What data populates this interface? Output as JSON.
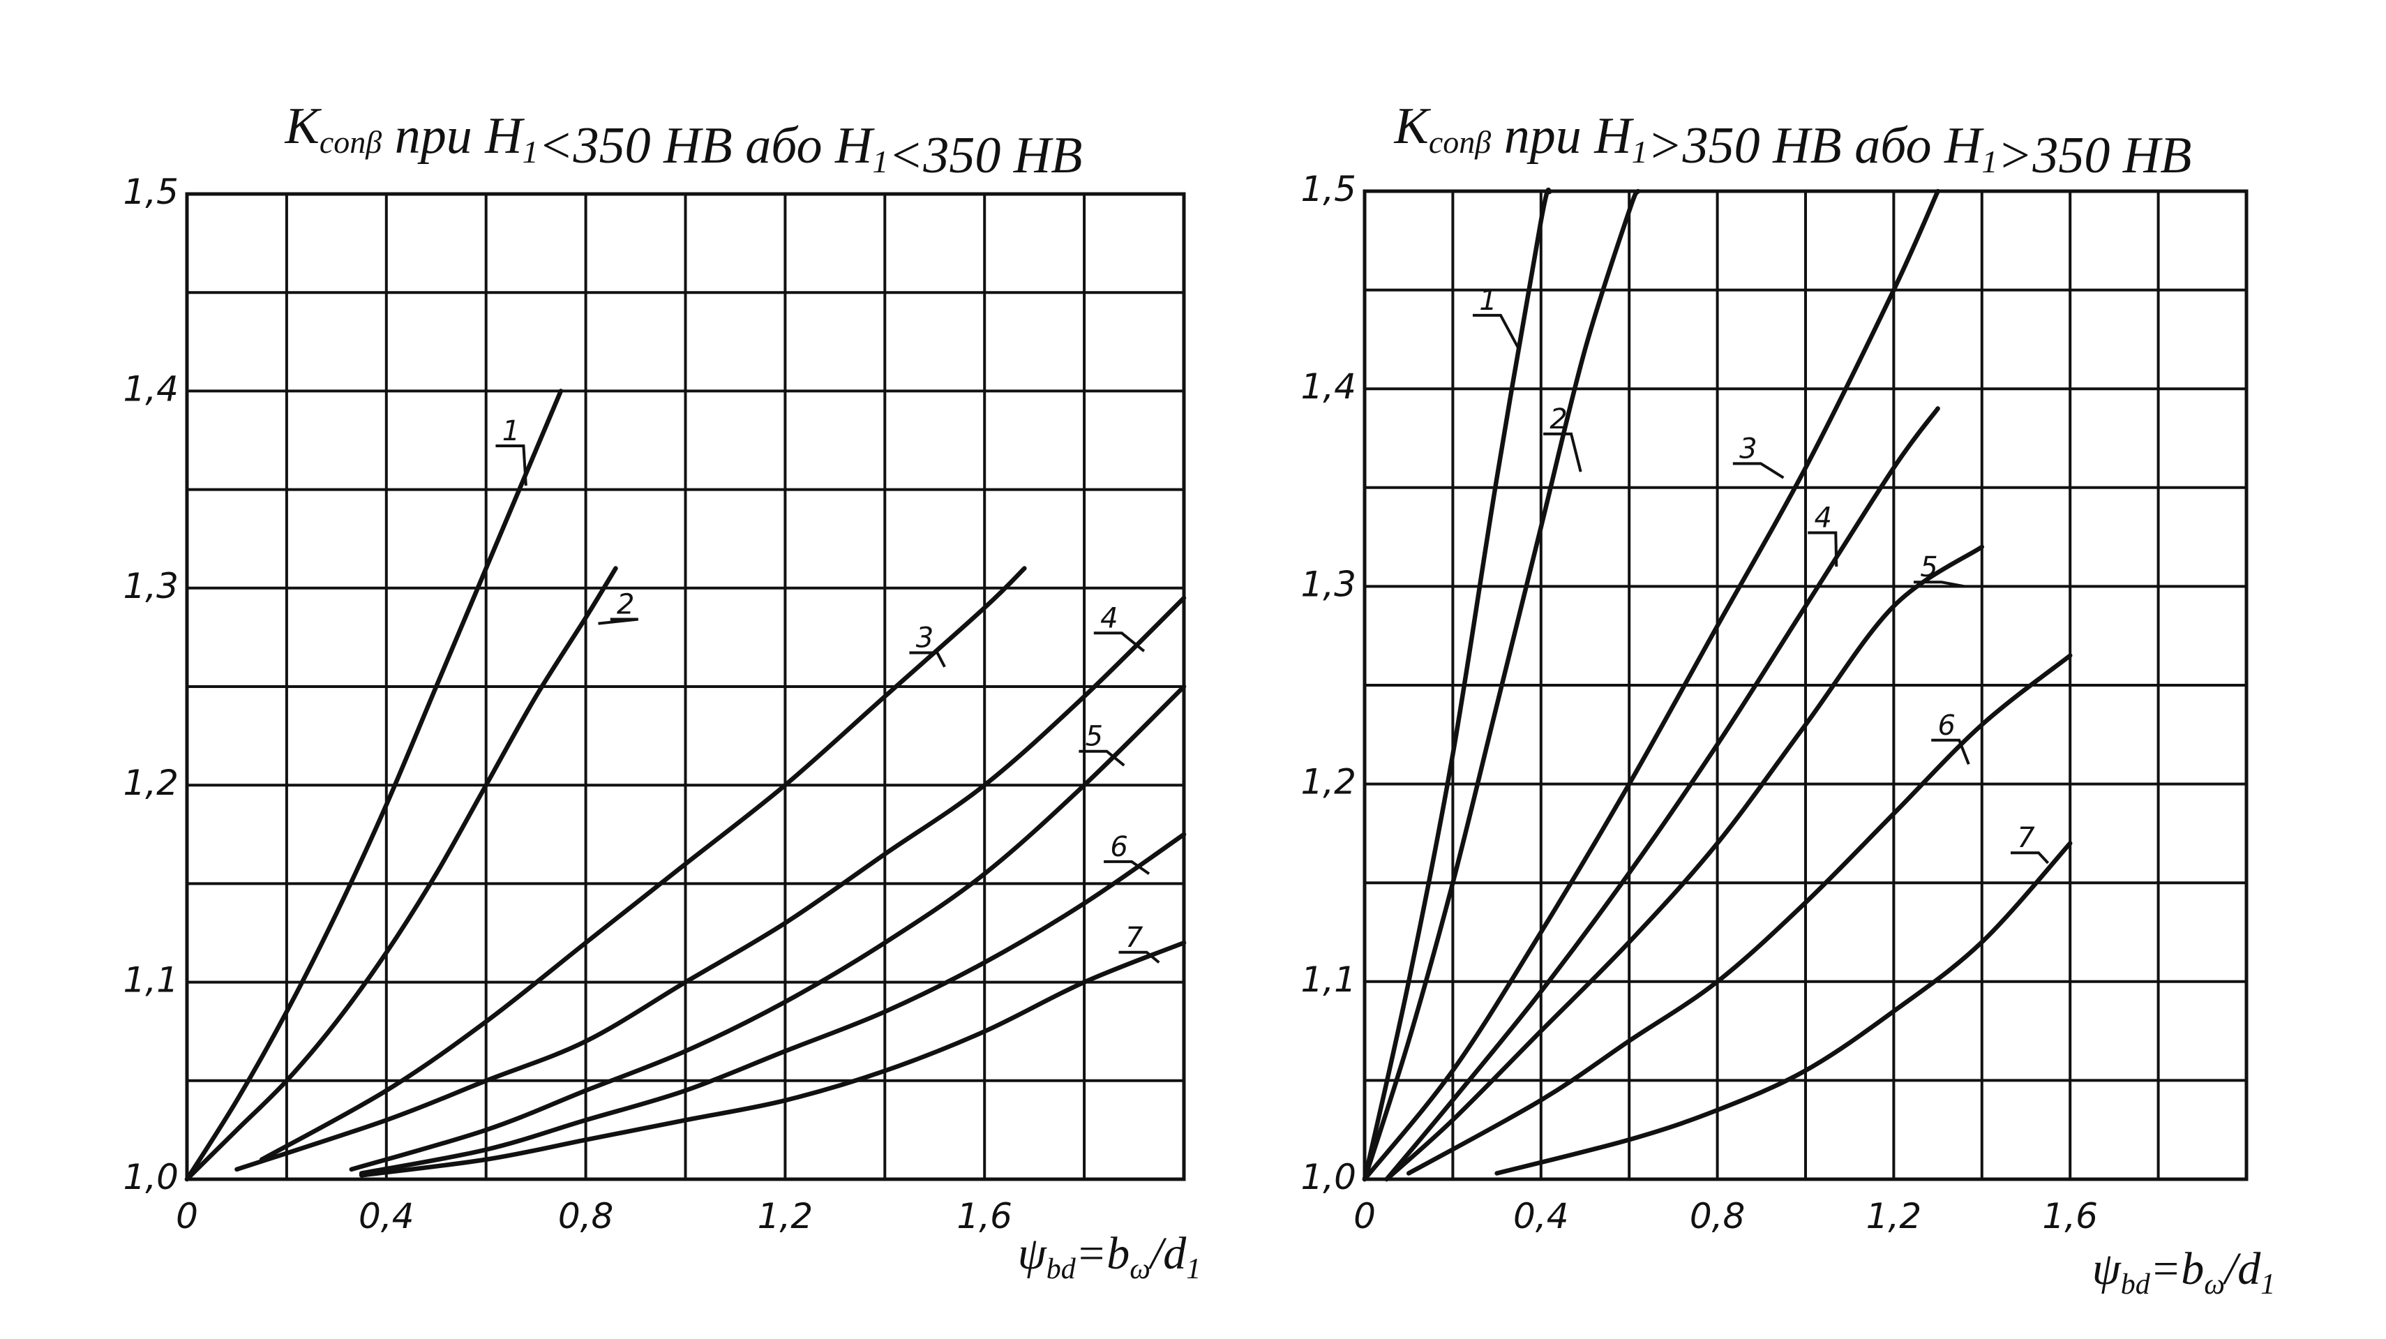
{
  "chart_data": [
    {
      "type": "line",
      "title": {
        "K": "K",
        "sub": "conβ",
        "text1": " при ",
        "H": "H",
        "Hsub": "1",
        "cond": "<350 HB",
        "or": " або ",
        "cond2": "<350 HB"
      },
      "xlabel": {
        "psi": "ψ",
        "psi_sub": "bd",
        "eq": "=b",
        "b_sub": "ω",
        "slash": "/d",
        "d_sub": "1"
      },
      "xlim": [
        0,
        2.0
      ],
      "ylim": [
        1.0,
        1.5
      ],
      "grid": true,
      "x_ticks": [
        {
          "v": 0,
          "label": "0"
        },
        {
          "v": 0.4,
          "label": "0,4"
        },
        {
          "v": 0.8,
          "label": "0,8"
        },
        {
          "v": 1.2,
          "label": "1,2"
        },
        {
          "v": 1.6,
          "label": "1,6"
        }
      ],
      "y_ticks": [
        {
          "v": 1.0,
          "label": "1,0"
        },
        {
          "v": 1.1,
          "label": "1,1"
        },
        {
          "v": 1.2,
          "label": "1,2"
        },
        {
          "v": 1.3,
          "label": "1,3"
        },
        {
          "v": 1.4,
          "label": "1,4"
        },
        {
          "v": 1.5,
          "label": "1,5"
        }
      ],
      "series": [
        {
          "name": "1",
          "label_at": [
            0.65,
            1.375
          ],
          "leader_to": [
            0.68,
            1.352
          ],
          "x": [
            0,
            0.1,
            0.2,
            0.3,
            0.4,
            0.5,
            0.6,
            0.7,
            0.75
          ],
          "y": [
            1.0,
            1.04,
            1.085,
            1.135,
            1.19,
            1.25,
            1.31,
            1.37,
            1.4
          ]
        },
        {
          "name": "2",
          "label_at": [
            0.88,
            1.287
          ],
          "leader_to": [
            0.825,
            1.282
          ],
          "x": [
            0,
            0.1,
            0.2,
            0.3,
            0.4,
            0.5,
            0.6,
            0.7,
            0.8,
            0.86
          ],
          "y": [
            1.0,
            1.025,
            1.05,
            1.08,
            1.115,
            1.155,
            1.2,
            1.245,
            1.285,
            1.31
          ]
        },
        {
          "name": "3",
          "label_at": [
            1.48,
            1.27
          ],
          "leader_to": [
            1.52,
            1.26
          ],
          "x": [
            0.15,
            0.4,
            0.6,
            0.8,
            1.0,
            1.2,
            1.4,
            1.6,
            1.68
          ],
          "y": [
            1.01,
            1.045,
            1.08,
            1.12,
            1.16,
            1.2,
            1.245,
            1.29,
            1.31
          ]
        },
        {
          "name": "4",
          "label_at": [
            1.85,
            1.28
          ],
          "leader_to": [
            1.92,
            1.268
          ],
          "x": [
            0.1,
            0.4,
            0.6,
            0.8,
            1.0,
            1.2,
            1.4,
            1.6,
            1.8,
            2.0
          ],
          "y": [
            1.005,
            1.03,
            1.05,
            1.07,
            1.1,
            1.13,
            1.165,
            1.2,
            1.245,
            1.295
          ]
        },
        {
          "name": "5",
          "label_at": [
            1.82,
            1.22
          ],
          "leader_to": [
            1.88,
            1.21
          ],
          "x": [
            0.33,
            0.6,
            0.8,
            1.0,
            1.2,
            1.4,
            1.6,
            1.8,
            2.0
          ],
          "y": [
            1.005,
            1.025,
            1.045,
            1.065,
            1.09,
            1.12,
            1.155,
            1.2,
            1.25
          ]
        },
        {
          "name": "6",
          "label_at": [
            1.87,
            1.164
          ],
          "leader_to": [
            1.93,
            1.155
          ],
          "x": [
            0.35,
            0.6,
            0.8,
            1.0,
            1.2,
            1.4,
            1.6,
            1.8,
            2.0
          ],
          "y": [
            1.003,
            1.015,
            1.03,
            1.045,
            1.065,
            1.085,
            1.11,
            1.14,
            1.175
          ]
        },
        {
          "name": "7",
          "label_at": [
            1.9,
            1.118
          ],
          "leader_to": [
            1.95,
            1.11
          ],
          "x": [
            0.35,
            0.6,
            0.8,
            1.0,
            1.2,
            1.4,
            1.6,
            1.8,
            2.0
          ],
          "y": [
            1.002,
            1.01,
            1.02,
            1.03,
            1.04,
            1.055,
            1.075,
            1.1,
            1.12
          ]
        }
      ]
    },
    {
      "type": "line",
      "title": {
        "K": "K",
        "sub": "conβ",
        "text1": " при ",
        "H": "H",
        "Hsub": "1",
        "cond": ">350 HB",
        "or": " або ",
        "cond2": ">350 HB"
      },
      "xlabel": {
        "psi": "ψ",
        "psi_sub": "bd",
        "eq": "=b",
        "b_sub": "ω",
        "slash": "/d",
        "d_sub": "1"
      },
      "xlim": [
        0,
        2.0
      ],
      "ylim": [
        1.0,
        1.5
      ],
      "grid": true,
      "x_ticks": [
        {
          "v": 0,
          "label": "0"
        },
        {
          "v": 0.4,
          "label": "0,4"
        },
        {
          "v": 0.8,
          "label": "0,8"
        },
        {
          "v": 1.2,
          "label": "1,2"
        },
        {
          "v": 1.6,
          "label": "1,6"
        }
      ],
      "y_ticks": [
        {
          "v": 1.0,
          "label": "1,0"
        },
        {
          "v": 1.1,
          "label": "1,1"
        },
        {
          "v": 1.2,
          "label": "1,2"
        },
        {
          "v": 1.3,
          "label": "1,3"
        },
        {
          "v": 1.4,
          "label": "1,4"
        },
        {
          "v": 1.5,
          "label": "1,5"
        }
      ],
      "series": [
        {
          "name": "1",
          "label_at": [
            0.28,
            1.44
          ],
          "leader_to": [
            0.35,
            1.42
          ],
          "x": [
            0,
            0.1,
            0.2,
            0.3,
            0.4,
            0.42
          ],
          "y": [
            1.0,
            1.1,
            1.215,
            1.355,
            1.485,
            1.5
          ]
        },
        {
          "name": "2",
          "label_at": [
            0.44,
            1.38
          ],
          "leader_to": [
            0.49,
            1.358
          ],
          "x": [
            0,
            0.1,
            0.2,
            0.3,
            0.4,
            0.5,
            0.6,
            0.62
          ],
          "y": [
            1.0,
            1.07,
            1.15,
            1.24,
            1.33,
            1.42,
            1.49,
            1.5
          ]
        },
        {
          "name": "3",
          "label_at": [
            0.87,
            1.365
          ],
          "leader_to": [
            0.95,
            1.355
          ],
          "x": [
            0,
            0.2,
            0.4,
            0.6,
            0.8,
            1.0,
            1.2,
            1.3
          ],
          "y": [
            1.0,
            1.055,
            1.125,
            1.2,
            1.28,
            1.36,
            1.45,
            1.5
          ]
        },
        {
          "name": "4",
          "label_at": [
            1.04,
            1.33
          ],
          "leader_to": [
            1.07,
            1.31
          ],
          "x": [
            0.05,
            0.2,
            0.4,
            0.6,
            0.8,
            1.0,
            1.2,
            1.3
          ],
          "y": [
            1.0,
            1.04,
            1.095,
            1.155,
            1.22,
            1.29,
            1.36,
            1.39
          ]
        },
        {
          "name": "5",
          "label_at": [
            1.28,
            1.305
          ],
          "leader_to": [
            1.36,
            1.3
          ],
          "x": [
            0.05,
            0.2,
            0.4,
            0.6,
            0.8,
            1.0,
            1.2,
            1.4
          ],
          "y": [
            1.0,
            1.03,
            1.075,
            1.12,
            1.17,
            1.23,
            1.29,
            1.32
          ]
        },
        {
          "name": "6",
          "label_at": [
            1.32,
            1.225
          ],
          "leader_to": [
            1.37,
            1.21
          ],
          "x": [
            0.1,
            0.4,
            0.6,
            0.8,
            1.0,
            1.2,
            1.4,
            1.6
          ],
          "y": [
            1.003,
            1.04,
            1.07,
            1.1,
            1.14,
            1.185,
            1.23,
            1.265
          ]
        },
        {
          "name": "7",
          "label_at": [
            1.5,
            1.168
          ],
          "leader_to": [
            1.55,
            1.16
          ],
          "x": [
            0.3,
            0.6,
            0.8,
            1.0,
            1.2,
            1.4,
            1.6
          ],
          "y": [
            1.003,
            1.02,
            1.035,
            1.055,
            1.085,
            1.12,
            1.17
          ]
        }
      ]
    }
  ]
}
